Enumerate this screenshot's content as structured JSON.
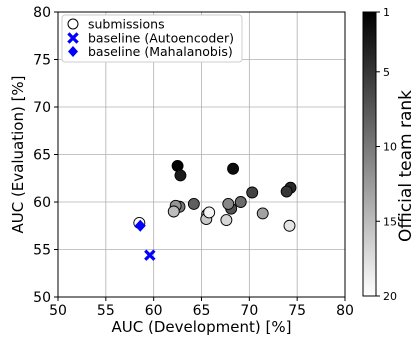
{
  "chart_data": {
    "type": "scatter",
    "xlabel": "AUC (Development) [%]",
    "ylabel": "AUC (Evaluation) [%]",
    "xlim": [
      50,
      80
    ],
    "ylim": [
      50,
      80
    ],
    "xticks": [
      "50",
      "55",
      "60",
      "65",
      "70",
      "75",
      "80"
    ],
    "yticks": [
      "50",
      "55",
      "60",
      "65",
      "70",
      "75",
      "80"
    ],
    "grid": true,
    "legend_position": "top-left",
    "legend": {
      "submissions": "submissions",
      "autoencoder": "baseline (Autoencoder)",
      "mahalanobis": "baseline (Mahalanobis)"
    },
    "colorbar": {
      "label": "Official team rank",
      "range": [
        1,
        20
      ],
      "ticks": [
        "1",
        "5",
        "10",
        "15",
        "20"
      ],
      "colors": [
        "#000000",
        "#ffffff"
      ]
    },
    "series": [
      {
        "name": "submissions",
        "marker": "circle",
        "points": [
          {
            "x": 62.5,
            "y": 63.8,
            "rank": 1
          },
          {
            "x": 68.3,
            "y": 63.5,
            "rank": 2
          },
          {
            "x": 62.8,
            "y": 62.8,
            "rank": 3
          },
          {
            "x": 74.3,
            "y": 61.5,
            "rank": 4
          },
          {
            "x": 73.9,
            "y": 61.1,
            "rank": 5
          },
          {
            "x": 70.3,
            "y": 61.0,
            "rank": 6
          },
          {
            "x": 68.1,
            "y": 59.3,
            "rank": 7
          },
          {
            "x": 64.2,
            "y": 59.8,
            "rank": 8
          },
          {
            "x": 69.1,
            "y": 60.0,
            "rank": 9
          },
          {
            "x": 62.7,
            "y": 59.5,
            "rank": 10
          },
          {
            "x": 67.8,
            "y": 59.8,
            "rank": 11
          },
          {
            "x": 62.3,
            "y": 59.6,
            "rank": 12
          },
          {
            "x": 71.4,
            "y": 58.8,
            "rank": 13
          },
          {
            "x": 65.6,
            "y": 58.7,
            "rank": 14
          },
          {
            "x": 62.1,
            "y": 59.0,
            "rank": 15
          },
          {
            "x": 65.5,
            "y": 58.2,
            "rank": 16
          },
          {
            "x": 67.6,
            "y": 58.1,
            "rank": 17
          },
          {
            "x": 74.2,
            "y": 57.5,
            "rank": 18
          },
          {
            "x": 65.8,
            "y": 58.9,
            "rank": 19
          },
          {
            "x": 58.5,
            "y": 57.8,
            "rank": 20
          }
        ]
      },
      {
        "name": "baseline (Autoencoder)",
        "marker": "x",
        "color": "#0000ff",
        "points": [
          {
            "x": 59.6,
            "y": 54.4
          }
        ]
      },
      {
        "name": "baseline (Mahalanobis)",
        "marker": "diamond",
        "color": "#0000ff",
        "points": [
          {
            "x": 58.6,
            "y": 57.5
          }
        ]
      }
    ]
  }
}
